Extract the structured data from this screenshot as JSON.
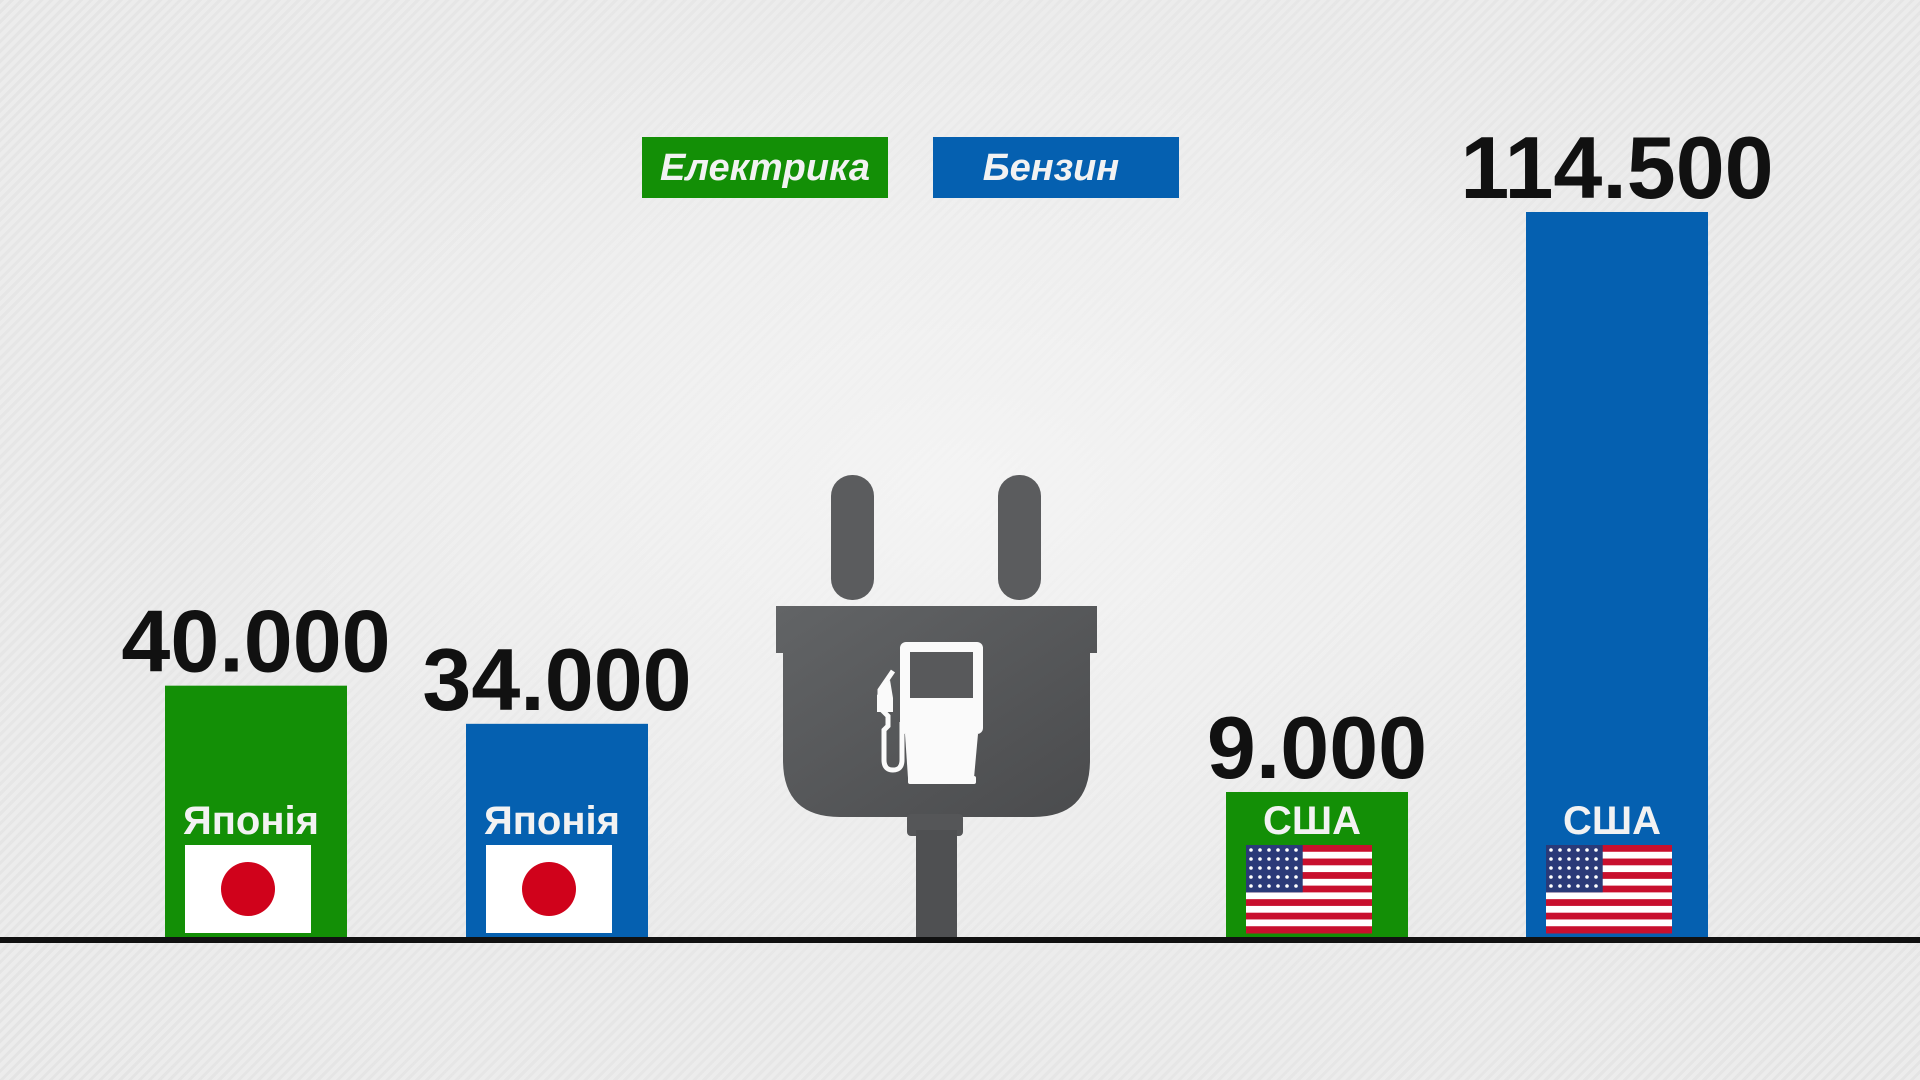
{
  "chart_data": {
    "type": "bar",
    "categories": [
      "Японія",
      "Японія",
      "США",
      "США"
    ],
    "series_of_bar": [
      "Електрика",
      "Бензин",
      "Електрика",
      "Бензин"
    ],
    "values": [
      40000,
      34000,
      9000,
      114500
    ],
    "value_labels": [
      "40.000",
      "34.000",
      "9.000",
      "114.500"
    ],
    "flags": [
      "japan-flag",
      "japan-flag",
      "usa-flag",
      "usa-flag"
    ],
    "legend": [
      {
        "name": "Електрика",
        "color": "#138f06"
      },
      {
        "name": "Бензин",
        "color": "#0560b0"
      }
    ],
    "legend_position": "top-center",
    "center_icon": "plug-fuel-pump-icon",
    "grid": false
  }
}
